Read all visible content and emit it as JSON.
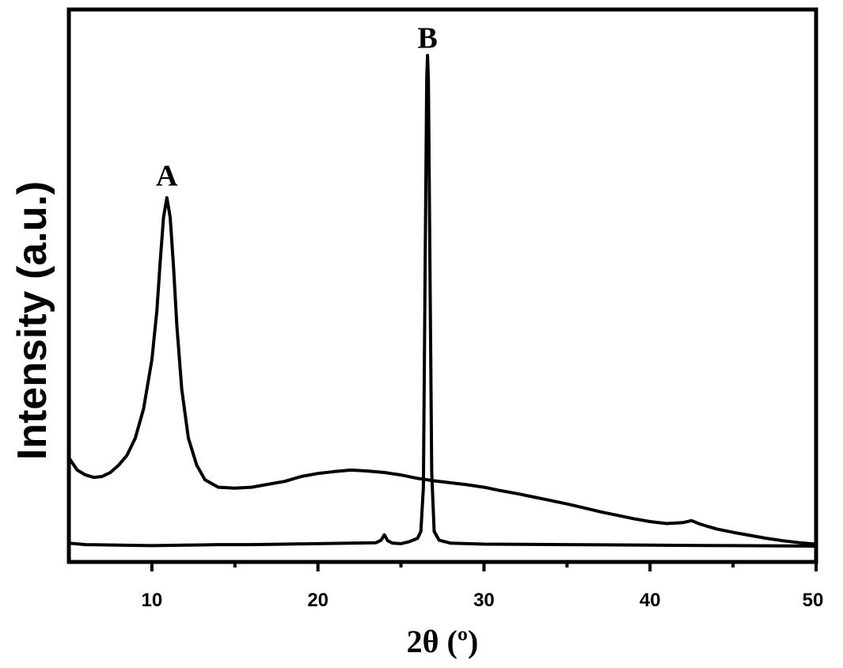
{
  "chart_data": {
    "type": "line",
    "xlabel": "2θ (º)",
    "ylabel": "Intensity (a.u.)",
    "xlim": [
      5,
      50
    ],
    "ylim": [
      0,
      100
    ],
    "yticks_shown": false,
    "grid": false,
    "legend": "none",
    "x_ticks": [
      10,
      20,
      30,
      40,
      50
    ],
    "x_minor_ticks": [
      15,
      25,
      35,
      45
    ],
    "annotations": [
      {
        "text": "A",
        "x": 10.9,
        "y": 73.5
      },
      {
        "text": "B",
        "x": 26.6,
        "y": 101.5
      }
    ],
    "series": [
      {
        "line_color": "#000000",
        "x": [
          5.0,
          5.5,
          6.0,
          6.5,
          7.0,
          7.5,
          8.0,
          8.5,
          9.0,
          9.5,
          10.0,
          10.3,
          10.5,
          10.7,
          10.9,
          11.1,
          11.3,
          11.5,
          11.8,
          12.2,
          12.7,
          13.2,
          14.0,
          15.0,
          16.0,
          17.0,
          18.0,
          19.0,
          20.0,
          21.0,
          22.0,
          23.0,
          24.0,
          25.0,
          26.0,
          27.0,
          28.0,
          29.0,
          30.0,
          31.0,
          32.0,
          33.0,
          34.0,
          35.0,
          36.0,
          37.0,
          38.0,
          39.0,
          40.0,
          41.0,
          42.0,
          42.5,
          43.0,
          44.0,
          45.0,
          46.0,
          47.0,
          48.0,
          49.0,
          50.0
        ],
        "y": [
          18.0,
          15.5,
          14.5,
          14.0,
          14.2,
          15.0,
          16.5,
          18.5,
          22.0,
          28.0,
          38.0,
          48.0,
          58.0,
          67.0,
          71.0,
          67.0,
          57.0,
          45.0,
          32.0,
          22.0,
          16.5,
          13.5,
          12.0,
          11.8,
          12.0,
          12.6,
          13.2,
          14.2,
          14.8,
          15.2,
          15.5,
          15.3,
          15.0,
          14.5,
          13.8,
          13.3,
          12.9,
          12.5,
          12.0,
          11.3,
          10.7,
          10.0,
          9.3,
          8.6,
          7.8,
          7.0,
          6.3,
          5.6,
          5.0,
          4.6,
          4.8,
          5.2,
          4.5,
          3.5,
          2.8,
          2.2,
          1.6,
          1.1,
          0.7,
          0.4
        ]
      },
      {
        "line_color": "#000000",
        "x": [
          5.0,
          6.0,
          8.0,
          10.0,
          12.0,
          14.0,
          16.0,
          18.0,
          20.0,
          22.0,
          23.5,
          23.8,
          24.0,
          24.2,
          24.5,
          25.0,
          25.5,
          26.0,
          26.2,
          26.35,
          26.45,
          26.55,
          26.6,
          26.65,
          26.75,
          26.85,
          27.0,
          27.3,
          28.0,
          30.0,
          35.0,
          40.0,
          45.0,
          50.0
        ],
        "y": [
          0.6,
          0.3,
          0.2,
          0.1,
          0.2,
          0.3,
          0.3,
          0.4,
          0.5,
          0.6,
          0.7,
          1.2,
          2.3,
          1.1,
          0.6,
          0.5,
          0.9,
          1.6,
          3.0,
          12.0,
          55.0,
          95.0,
          100.0,
          95.0,
          55.0,
          15.0,
          3.0,
          1.2,
          0.6,
          0.4,
          0.3,
          0.2,
          0.1,
          0.0
        ]
      }
    ]
  }
}
